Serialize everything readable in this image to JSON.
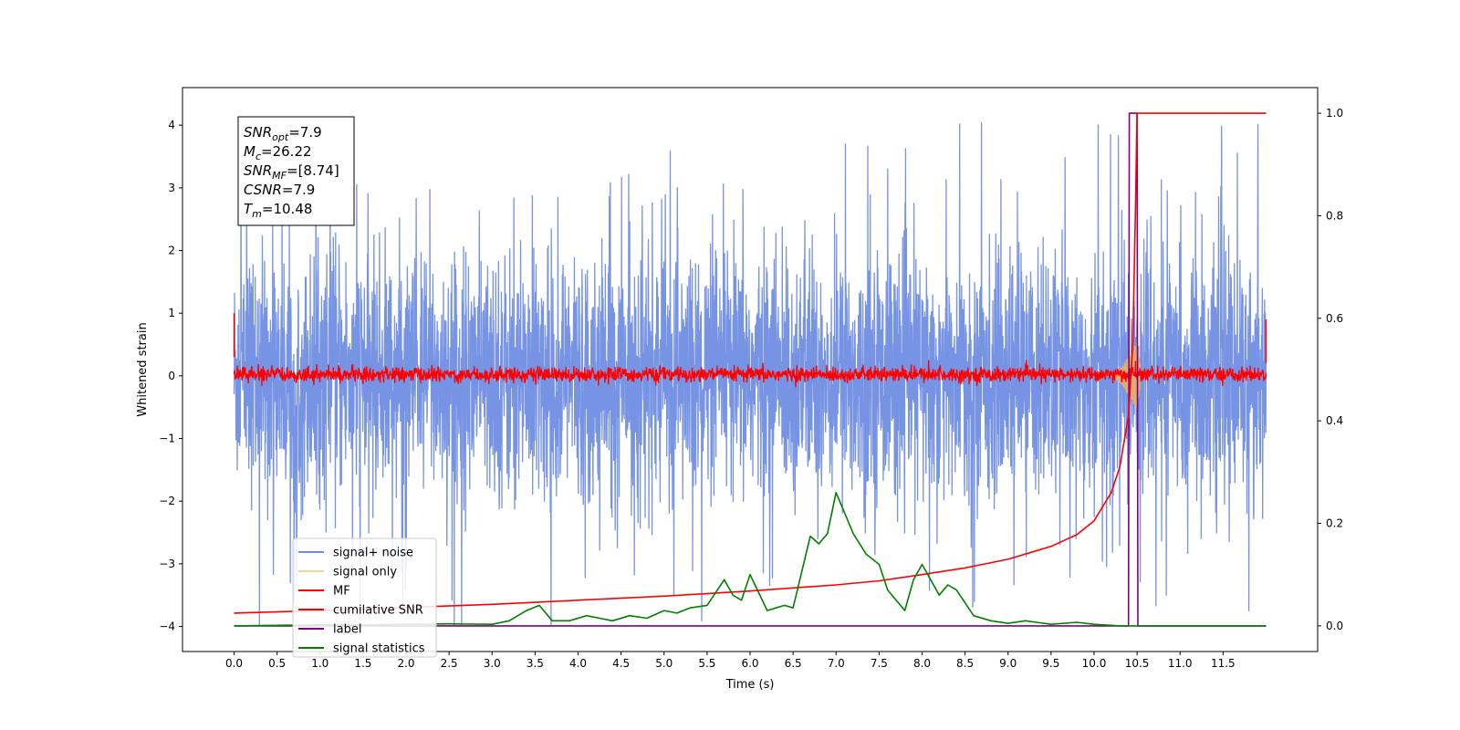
{
  "chart_data": {
    "type": "line",
    "xlabel": "Time (s)",
    "ylabel": "Whitened strain",
    "xlim": [
      -0.6,
      12.6
    ],
    "ylim_left": [
      -4.4,
      4.6
    ],
    "ylim_right": [
      -0.05,
      1.05
    ],
    "xticks": [
      "0.0",
      "0.5",
      "1.0",
      "1.5",
      "2.0",
      "2.5",
      "3.0",
      "3.5",
      "4.0",
      "4.5",
      "5.0",
      "5.5",
      "6.0",
      "6.5",
      "7.0",
      "7.5",
      "8.0",
      "8.5",
      "9.0",
      "9.5",
      "10.0",
      "10.5",
      "11.0",
      "11.5"
    ],
    "yticks_left": [
      "4",
      "3",
      "2",
      "1",
      "0",
      "−1",
      "−2",
      "−3",
      "−4"
    ],
    "yticks_right": [
      "1.0",
      "0.8",
      "0.6",
      "0.4",
      "0.2",
      "0.0"
    ],
    "grid": false,
    "legend_position": "lower left",
    "legend": [
      {
        "label": "signal+ noise",
        "color": "#6f8de3"
      },
      {
        "label": "signal only",
        "color": "#f8d38a"
      },
      {
        "label": "MF",
        "color": "#ff0000"
      },
      {
        "label": "cumilative SNR",
        "color": "#ff0000"
      },
      {
        "label": "label",
        "color": "#800080"
      },
      {
        "label": "signal statistics",
        "color": "#008000"
      }
    ],
    "annotation_lines": [
      {
        "base": "SNR",
        "sub": "opt",
        "rest": "=7.9"
      },
      {
        "base": "M",
        "sub": "c",
        "rest": "=26.22"
      },
      {
        "base": "SNR",
        "sub": "MF",
        "rest": "=[8.74]"
      },
      {
        "base": "CSNR",
        "sub": "",
        "rest": "=7.9"
      },
      {
        "base": "T",
        "sub": "m",
        "rest": "=10.48"
      }
    ],
    "series": [
      {
        "name": "signal+ noise",
        "axis": "left",
        "x_range": [
          0,
          12
        ],
        "approx_std": 0.95,
        "approx_extent": [
          -4.0,
          4.2
        ]
      },
      {
        "name": "signal only",
        "axis": "left",
        "x_range": [
          10.2,
          10.55
        ],
        "peak_amplitude": 0.7
      },
      {
        "name": "MF",
        "axis": "left",
        "x_range": [
          0,
          12
        ],
        "approx_extent": [
          -0.2,
          0.4
        ]
      },
      {
        "name": "cumilative SNR",
        "axis": "right",
        "x": [
          0.0,
          1.0,
          2.0,
          3.0,
          4.0,
          5.0,
          6.0,
          7.0,
          7.5,
          8.0,
          8.5,
          9.0,
          9.5,
          9.8,
          10.0,
          10.2,
          10.3,
          10.4,
          10.45,
          10.48,
          10.5,
          12.0
        ],
        "y": [
          0.025,
          0.03,
          0.036,
          0.042,
          0.05,
          0.058,
          0.068,
          0.08,
          0.088,
          0.1,
          0.113,
          0.13,
          0.155,
          0.178,
          0.205,
          0.26,
          0.31,
          0.41,
          0.55,
          0.8,
          1.0,
          1.0
        ]
      },
      {
        "name": "label",
        "axis": "right",
        "x": [
          0.0,
          10.4,
          10.41,
          10.5,
          10.51,
          12.0
        ],
        "y": [
          0.0,
          0.0,
          1.0,
          1.0,
          0.0,
          0.0
        ]
      },
      {
        "name": "signal statistics",
        "axis": "right",
        "x": [
          0.0,
          0.5,
          1.0,
          1.5,
          2.0,
          2.5,
          3.0,
          3.2,
          3.4,
          3.55,
          3.7,
          3.9,
          4.1,
          4.25,
          4.4,
          4.6,
          4.8,
          5.0,
          5.15,
          5.3,
          5.5,
          5.7,
          5.8,
          5.9,
          6.0,
          6.2,
          6.3,
          6.4,
          6.5,
          6.7,
          6.8,
          6.9,
          7.0,
          7.1,
          7.2,
          7.35,
          7.5,
          7.6,
          7.8,
          7.9,
          8.0,
          8.2,
          8.3,
          8.4,
          8.6,
          8.8,
          9.0,
          9.2,
          9.5,
          9.8,
          10.0,
          10.3,
          10.5,
          12.0
        ],
        "y": [
          0.0,
          0.001,
          0.002,
          0.002,
          0.003,
          0.004,
          0.003,
          0.01,
          0.03,
          0.04,
          0.01,
          0.01,
          0.02,
          0.015,
          0.01,
          0.02,
          0.015,
          0.03,
          0.025,
          0.035,
          0.04,
          0.09,
          0.06,
          0.05,
          0.1,
          0.03,
          0.035,
          0.04,
          0.035,
          0.175,
          0.16,
          0.18,
          0.26,
          0.22,
          0.18,
          0.14,
          0.12,
          0.07,
          0.03,
          0.09,
          0.12,
          0.06,
          0.08,
          0.07,
          0.02,
          0.01,
          0.005,
          0.01,
          0.003,
          0.007,
          0.003,
          0.0,
          0.0,
          0.0
        ]
      }
    ]
  }
}
